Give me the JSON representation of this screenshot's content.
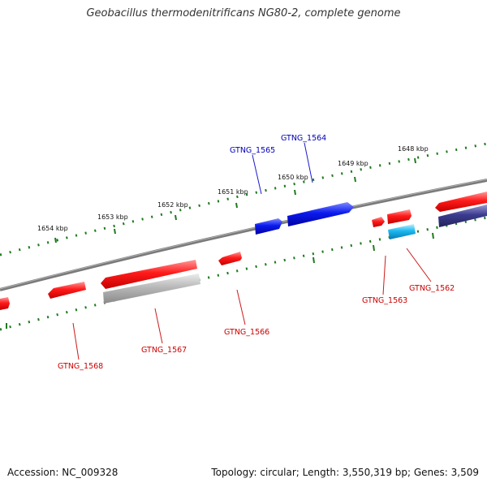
{
  "title": "Geobacillus thermodenitrificans NG80-2, complete genome",
  "footer": {
    "accession": "Accession: NC_009328",
    "topology": "Topology: circular; Length: 3,550,319 bp; Genes: 3,509"
  },
  "ticks": [
    "1654 kbp",
    "1653 kbp",
    "1652 kbp",
    "1651 kbp",
    "1650 kbp",
    "1649 kbp",
    "1648 kbp"
  ],
  "genes": {
    "top_strand": [
      "GTNG_1565",
      "GTNG_1564"
    ],
    "bottom_strand": [
      "GTNG_1568",
      "GTNG_1567",
      "GTNG_1566",
      "GTNG_1563",
      "GTNG_1562"
    ]
  },
  "colors": {
    "backbone": "#808080",
    "ruler": "#1e7a1e",
    "feature_red": "#ff1a1a",
    "feature_blue": "#0a1aee",
    "feature_cyan": "#1ab8f0",
    "feature_navy": "#3c3c90",
    "feature_gray": "#b8b8b8",
    "label_red": "#cc0000",
    "label_blue": "#0000bb"
  }
}
